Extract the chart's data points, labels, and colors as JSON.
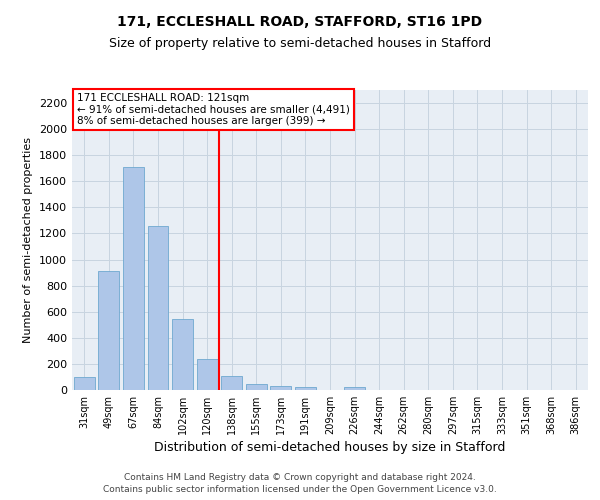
{
  "title1": "171, ECCLESHALL ROAD, STAFFORD, ST16 1PD",
  "title2": "Size of property relative to semi-detached houses in Stafford",
  "xlabel": "Distribution of semi-detached houses by size in Stafford",
  "ylabel": "Number of semi-detached properties",
  "footer1": "Contains HM Land Registry data © Crown copyright and database right 2024.",
  "footer2": "Contains public sector information licensed under the Open Government Licence v3.0.",
  "annotation_line1": "171 ECCLESHALL ROAD: 121sqm",
  "annotation_line2": "← 91% of semi-detached houses are smaller (4,491)",
  "annotation_line3": "8% of semi-detached houses are larger (399) →",
  "bar_labels": [
    "31sqm",
    "49sqm",
    "67sqm",
    "84sqm",
    "102sqm",
    "120sqm",
    "138sqm",
    "155sqm",
    "173sqm",
    "191sqm",
    "209sqm",
    "226sqm",
    "244sqm",
    "262sqm",
    "280sqm",
    "297sqm",
    "315sqm",
    "333sqm",
    "351sqm",
    "368sqm",
    "386sqm"
  ],
  "bar_values": [
    100,
    915,
    1710,
    1255,
    545,
    235,
    105,
    48,
    30,
    22,
    0,
    25,
    0,
    0,
    0,
    0,
    0,
    0,
    0,
    0,
    0
  ],
  "bar_color": "#aec6e8",
  "bar_edge_color": "#6fa8d0",
  "vline_x": 5.5,
  "vline_color": "red",
  "ylim": [
    0,
    2300
  ],
  "yticks": [
    0,
    200,
    400,
    600,
    800,
    1000,
    1200,
    1400,
    1600,
    1800,
    2000,
    2200
  ],
  "grid_color": "#c8d4e0",
  "bg_color": "#e8eef5",
  "title1_fontsize": 10,
  "title2_fontsize": 9,
  "ylabel_fontsize": 8,
  "xlabel_fontsize": 9,
  "ytick_fontsize": 8,
  "xtick_fontsize": 7,
  "annotation_fontsize": 7.5,
  "footer_fontsize": 6.5
}
